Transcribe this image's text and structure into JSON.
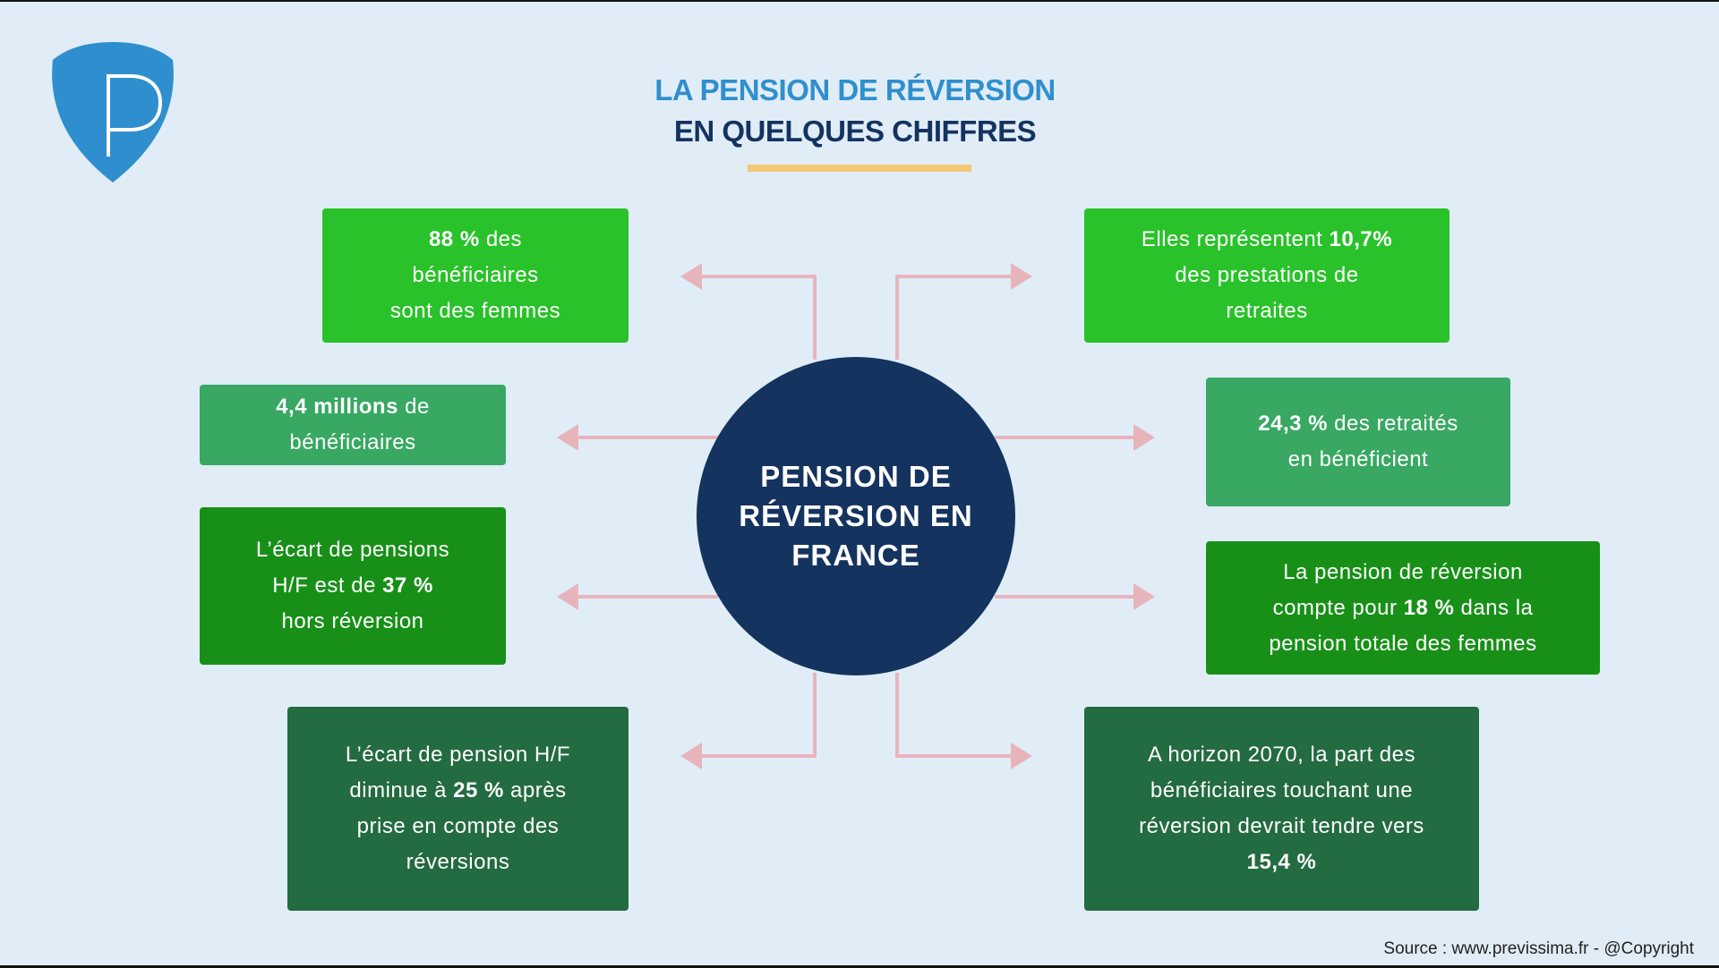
{
  "header": {
    "title_line1": "LA PENSION DE RÉVERSION",
    "title_line2": "EN QUELQUES CHIFFRES",
    "logo_letter": "P"
  },
  "colors": {
    "background": "#e0edf7",
    "title_blue": "#2f8fce",
    "navy": "#14335f",
    "accent_yellow": "#f2c877",
    "arrow_pink": "#e8b4bc",
    "green_bright": "#29c22a",
    "green_medium": "#38a862",
    "green_strong": "#189018",
    "green_dark": "#236b40"
  },
  "center": {
    "label": "PENSION DE RÉVERSION EN FRANCE"
  },
  "boxes": [
    {
      "id": "beneficiaires-femmes",
      "color": "#29c22a",
      "lines": [
        [
          {
            "t": "88 %",
            "b": true
          },
          {
            "t": " des"
          }
        ],
        [
          {
            "t": "bénéficiaires"
          }
        ],
        [
          {
            "t": "sont des femmes"
          }
        ]
      ]
    },
    {
      "id": "prestations-retraites",
      "color": "#29c22a",
      "lines": [
        [
          {
            "t": "Elles représentent "
          },
          {
            "t": "10,7%",
            "b": true
          }
        ],
        [
          {
            "t": "des prestations de"
          }
        ],
        [
          {
            "t": "retraites"
          }
        ]
      ]
    },
    {
      "id": "nombre-beneficiaires",
      "color": "#38a862",
      "lines": [
        [
          {
            "t": "4,4 millions",
            "b": true
          },
          {
            "t": " de"
          }
        ],
        [
          {
            "t": "bénéficiaires"
          }
        ]
      ]
    },
    {
      "id": "part-retraites",
      "color": "#38a862",
      "lines": [
        [
          {
            "t": "24,3 %",
            "b": true
          },
          {
            "t": " des retraités"
          }
        ],
        [
          {
            "t": "en bénéficient"
          }
        ]
      ]
    },
    {
      "id": "ecart-hors-reversion",
      "color": "#189018",
      "lines": [
        [
          {
            "t": "L’écart de pensions"
          }
        ],
        [
          {
            "t": "H/F est de "
          },
          {
            "t": "37 %",
            "b": true
          }
        ],
        [
          {
            "t": "hors réversion"
          }
        ]
      ]
    },
    {
      "id": "part-pension-femmes",
      "color": "#189018",
      "lines": [
        [
          {
            "t": "La pension de réversion"
          }
        ],
        [
          {
            "t": "compte pour "
          },
          {
            "t": "18 %",
            "b": true
          },
          {
            "t": " dans la"
          }
        ],
        [
          {
            "t": "pension totale des femmes"
          }
        ]
      ]
    },
    {
      "id": "ecart-apres-reversion",
      "color": "#236b40",
      "lines": [
        [
          {
            "t": "L’écart de pension H/F"
          }
        ],
        [
          {
            "t": "diminue à "
          },
          {
            "t": "25 %",
            "b": true
          },
          {
            "t": " après"
          }
        ],
        [
          {
            "t": "prise en compte des"
          }
        ],
        [
          {
            "t": "réversions"
          }
        ]
      ]
    },
    {
      "id": "horizon-2070",
      "color": "#236b40",
      "lines": [
        [
          {
            "t": "A horizon 2070, la part des"
          }
        ],
        [
          {
            "t": "bénéficiaires touchant une"
          }
        ],
        [
          {
            "t": "réversion devrait tendre vers"
          }
        ],
        [
          {
            "t": "15,4 %",
            "b": true
          }
        ]
      ]
    }
  ],
  "footer": {
    "source": "Source : www.previssima.fr - @Copyright"
  }
}
